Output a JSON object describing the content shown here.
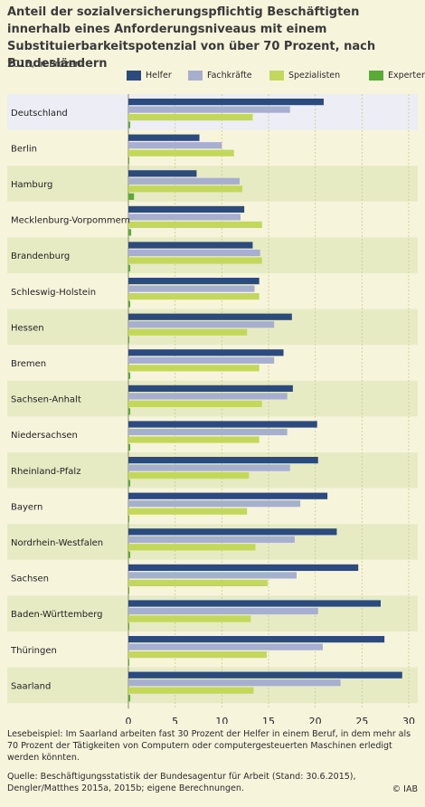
{
  "title": "Anteil der sozialversicherungspflichtig Beschäftigten innerhalb eines Anforderungsniveaus mit einem Substituierbarkeitspotenzial von über 70 Prozent, nach Bundesländern",
  "subtitle": "2015, in Prozent",
  "footnote": "Lesebeispiel: Im Saarland arbeiten fast 30 Prozent der Helfer in einem Beruf, in dem mehr als 70 Prozent der Tätigkeiten von Computern oder computergesteuerten Maschinen erledigt werden könnten.",
  "source": "Quelle: Beschäftigungsstatistik der Bundesagentur für Arbeit (Stand: 30.6.2015), Dengler/Matthes 2015a, 2015b; eigene Berechnungen.",
  "copyright": "© IAB",
  "colors": {
    "Helfer": "#2b4a7e",
    "Fachkräfte": "#a7afd0",
    "Spezialisten": "#c3d85a",
    "Experten": "#5aab36",
    "row_light": "#ecedf5",
    "row_dark": "#e6ebc4",
    "grid": "#c9cd8a"
  },
  "chart_data": {
    "type": "bar",
    "orientation": "horizontal",
    "categories": [
      "Deutschland",
      "Berlin",
      "Hamburg",
      "Mecklenburg-Vorpommern",
      "Brandenburg",
      "Schleswig-Holstein",
      "Hessen",
      "Bremen",
      "Sachsen-Anhalt",
      "Niedersachsen",
      "Rheinland-Pfalz",
      "Bayern",
      "Nordrhein-Westfalen",
      "Sachsen",
      "Baden-Württemberg",
      "Thüringen",
      "Saarland"
    ],
    "series": [
      {
        "name": "Helfer",
        "values": [
          20.9,
          7.6,
          7.3,
          12.4,
          13.3,
          14.0,
          17.5,
          16.6,
          17.6,
          20.2,
          20.3,
          21.3,
          22.3,
          24.6,
          27.0,
          27.4,
          29.3
        ]
      },
      {
        "name": "Fachkräfte",
        "values": [
          17.3,
          10.0,
          11.9,
          12.0,
          14.1,
          13.5,
          15.6,
          15.6,
          17.0,
          17.0,
          17.3,
          18.4,
          17.8,
          18.0,
          20.3,
          20.8,
          22.7
        ]
      },
      {
        "name": "Spezialisten",
        "values": [
          13.3,
          11.3,
          12.2,
          14.3,
          14.3,
          14.0,
          12.7,
          14.0,
          14.3,
          14.0,
          12.9,
          12.7,
          13.6,
          14.9,
          13.1,
          14.8,
          13.4
        ]
      },
      {
        "name": "Experten",
        "values": [
          0.2,
          0.1,
          0.6,
          0.3,
          0.2,
          0.2,
          0.1,
          0.2,
          0.2,
          0.2,
          0.2,
          0.1,
          0.2,
          0.1,
          0.1,
          0.1,
          0.2
        ]
      }
    ],
    "xlim": [
      0,
      30
    ],
    "xticks": [
      0,
      5,
      10,
      15,
      20,
      25,
      30
    ],
    "legend_position": "top",
    "grid": true
  }
}
